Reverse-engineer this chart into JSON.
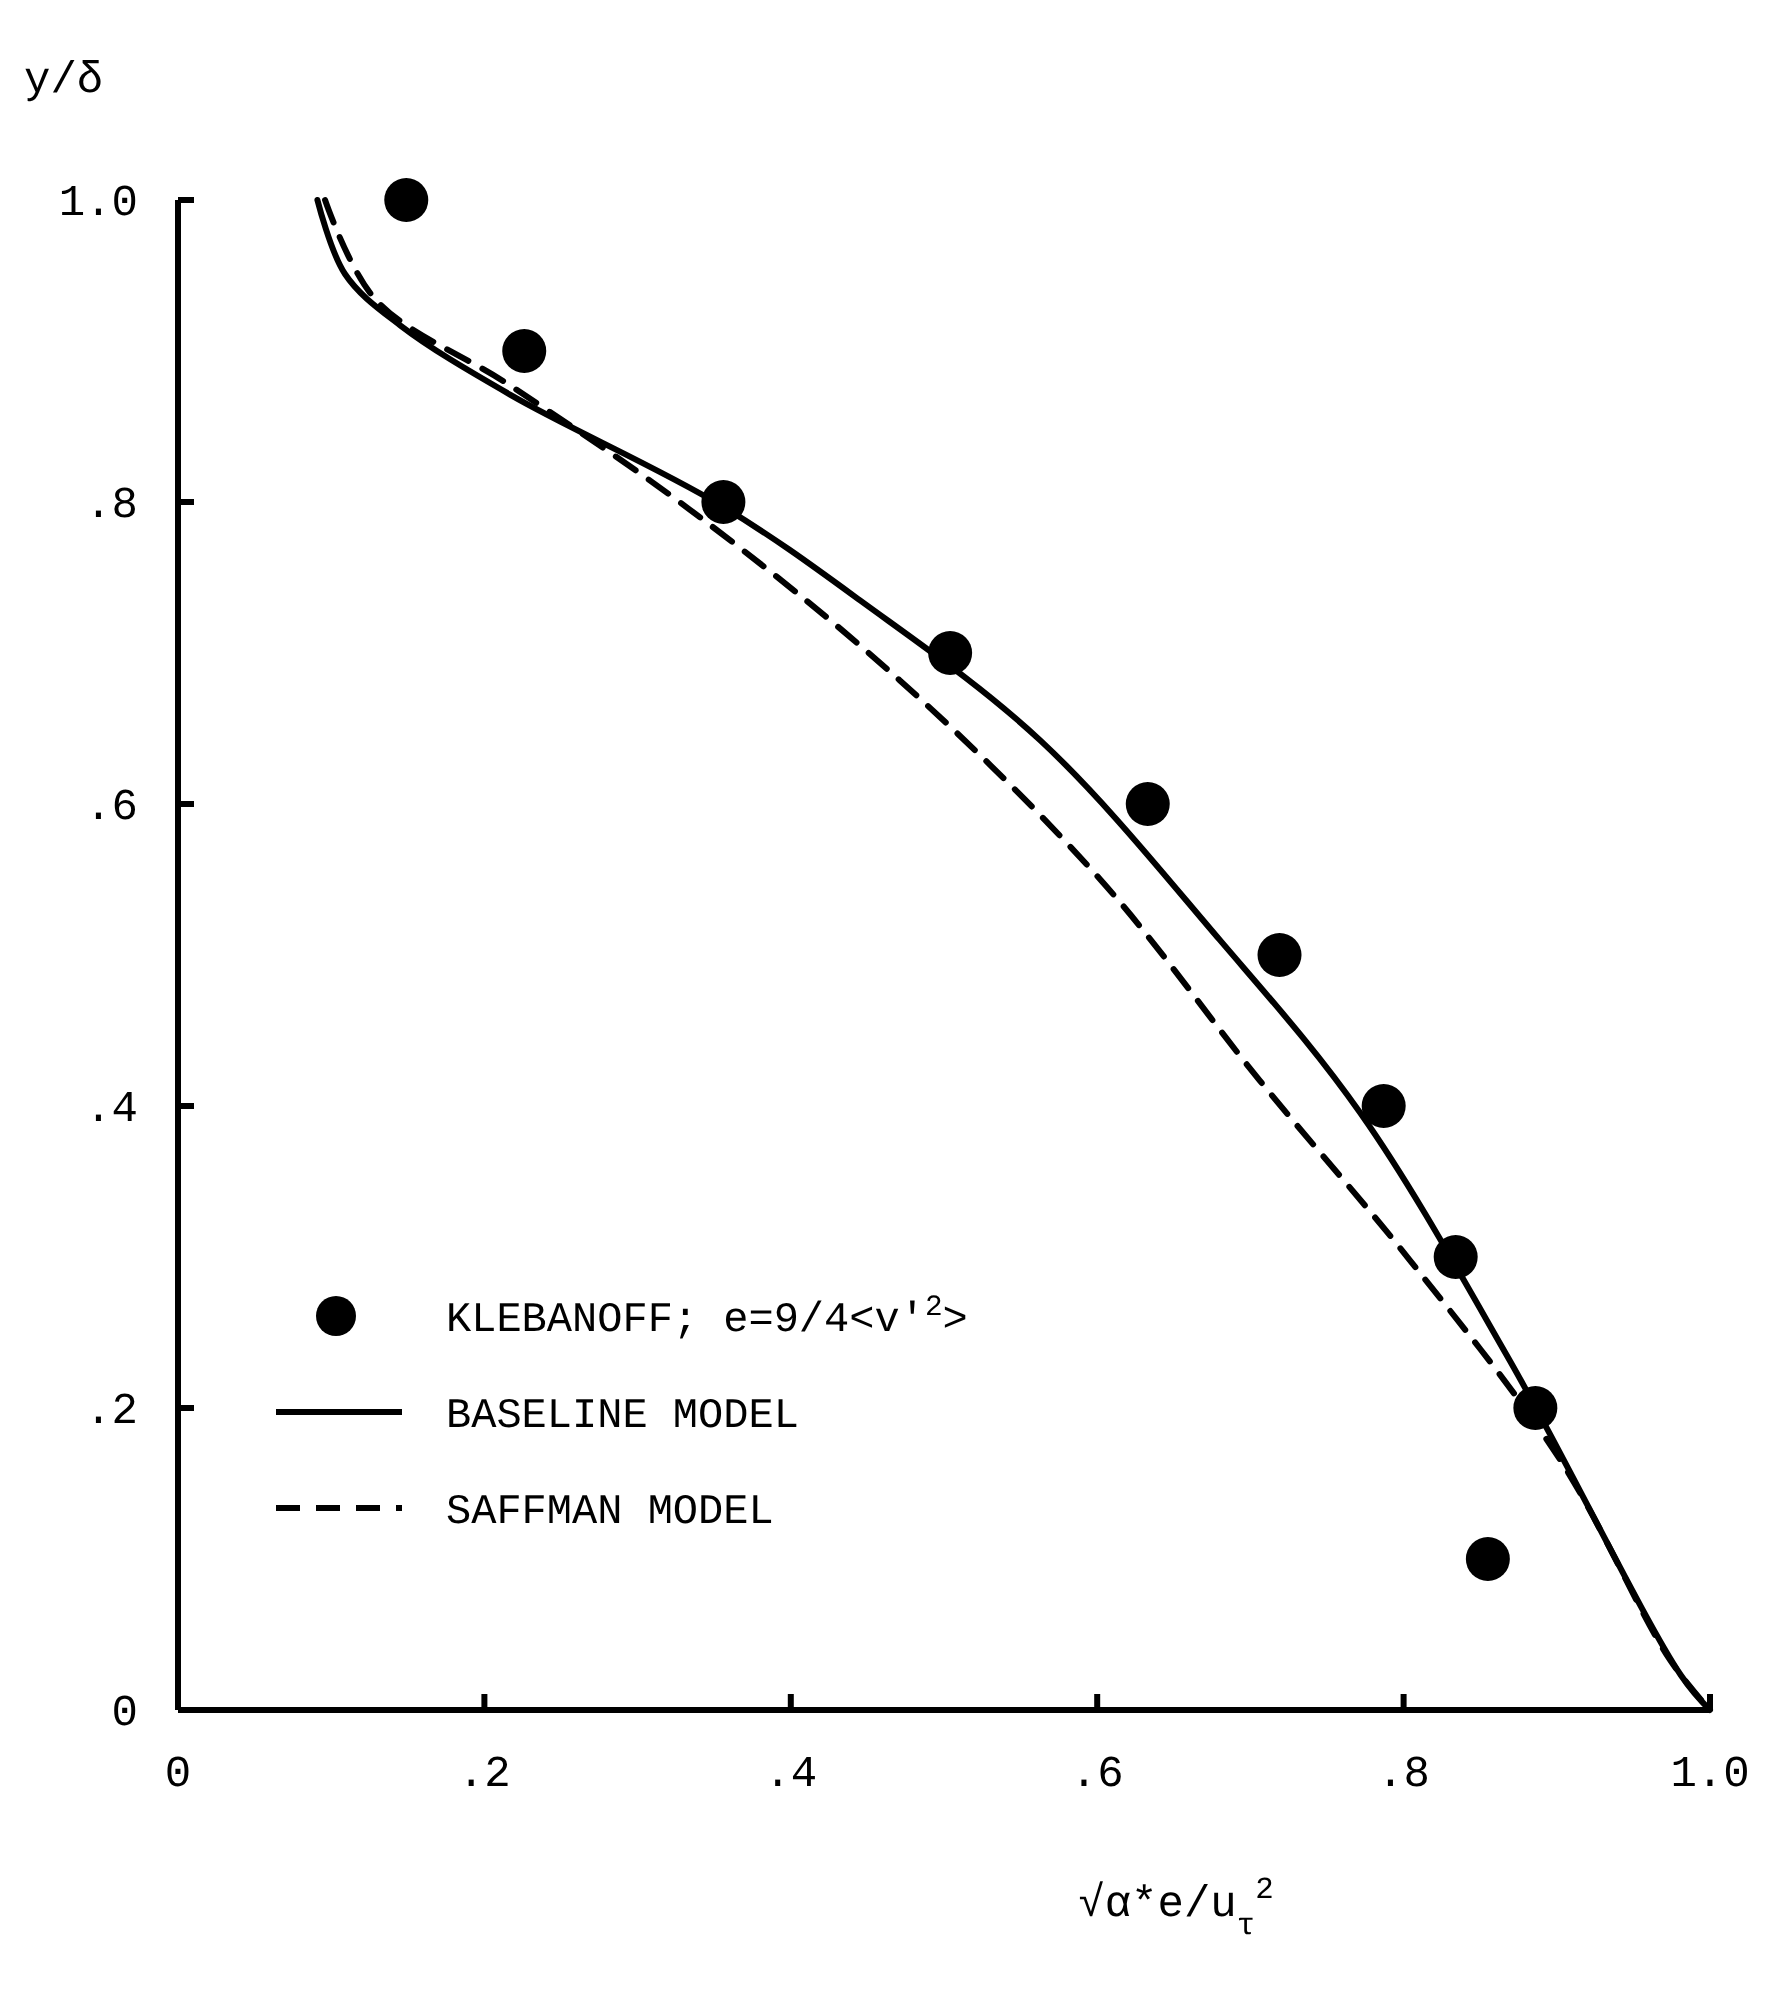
{
  "chart_data": {
    "type": "line",
    "xlabel": "√α*e/u$_{τ}$$^{2}$",
    "ylabel": "y/δ",
    "xlim": [
      0,
      1
    ],
    "ylim": [
      0,
      1
    ],
    "xticks": [
      0,
      {
        "value": 0.2,
        "label": ".2"
      },
      {
        "value": 0.4,
        "label": ".4"
      },
      {
        "value": 0.6,
        "label": ".6"
      },
      {
        "value": 0.8,
        "label": ".8"
      },
      {
        "value": 1,
        "label": "1.0"
      }
    ],
    "yticks": [
      0,
      {
        "value": 0.2,
        "label": ".2"
      },
      {
        "value": 0.4,
        "label": ".4"
      },
      {
        "value": 0.6,
        "label": ".6"
      },
      {
        "value": 0.8,
        "label": ".8"
      },
      {
        "value": 1,
        "label": "1.0"
      }
    ],
    "grid": false,
    "legend": "bottom left",
    "series": [
      {
        "name": "KLEBANOFF; e=9/4<v'$^{2}$>",
        "type": "scatter",
        "marker": "circle",
        "color": "#000000",
        "x": [
          0.149,
          0.226,
          0.356,
          0.504,
          0.633,
          0.719,
          0.787,
          0.834,
          0.886,
          0.855
        ],
        "values": [
          1.0,
          0.9,
          0.8,
          0.7,
          0.6,
          0.5,
          0.4,
          0.3,
          0.2,
          0.1
        ]
      },
      {
        "name": "BASELINE MODEL",
        "line_style": "solid",
        "color": "#000000",
        "x": [
          0.091,
          0.109,
          0.145,
          0.217,
          0.354,
          0.445,
          0.563,
          0.68,
          0.772,
          0.869,
          0.981,
          1.0
        ],
        "values": [
          1.0,
          0.951,
          0.917,
          0.871,
          0.798,
          0.735,
          0.642,
          0.51,
          0.395,
          0.232,
          0.023,
          0
        ]
      },
      {
        "name": "SAFFMAN MODEL",
        "line_style": "dashed",
        "color": "#000000",
        "x": [
          0.096,
          0.129,
          0.217,
          0.334,
          0.471,
          0.602,
          0.706,
          0.804,
          0.902,
          0.974,
          1.0
        ],
        "values": [
          1.0,
          0.934,
          0.877,
          0.795,
          0.682,
          0.55,
          0.417,
          0.298,
          0.166,
          0.033,
          0
        ]
      }
    ]
  }
}
